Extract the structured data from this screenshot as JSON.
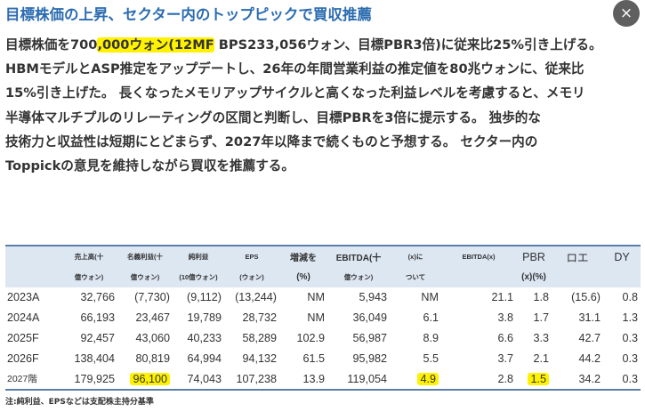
{
  "title": "目標株価の上昇、セクター内のトップピックで買収推薦",
  "close_icon": "×",
  "paragraph": {
    "line1_pre": "目標株価を700",
    "line1_hl": ",000ウォン(12MF",
    "line1_post": " BPS233,056ウォン、目標PBR3倍)に従来比25%引き上げる。",
    "line2": "HBMモデルとASP推定をアップデートし、26年の年間営業利益の推定値を80兆ウォンに、従来比",
    "line3": "15%引き上げた。 長くなったメモリアップサイクルと高くなった利益レベルを考慮すると、メモリ",
    "line4": "半導体マルチプルのリレーティングの区間と判断し、目標PBRを3倍に提示する。 独歩的な",
    "line5": "技術力と収益性は短期にとどまらず、2027年以降まで続くものと予想する。 セクター内の",
    "line6": "Toppickの意見を維持しながら買収を推薦する。"
  },
  "table": {
    "header_row1": [
      "",
      "売上高(十",
      "名義利益(十",
      "純利益",
      "EPS",
      "増減を",
      "EBITDA(十",
      "(x)に",
      "EBITDA(x)",
      "PBR",
      "ロエ",
      "DY"
    ],
    "header_row2": [
      "",
      "億ウォン)",
      "億ウォン)",
      "(10億ウォン)",
      "(ウォン)",
      "(%)",
      "億ウォン)",
      "ついて",
      "",
      "(x)(%)",
      "",
      ""
    ],
    "rows": [
      [
        "2023A",
        "32,766",
        "(7,730)",
        "(9,112)",
        "(13,244)",
        "NM",
        "5,943",
        "NM",
        "21.1",
        "1.8",
        "(15.6)",
        "0.8"
      ],
      [
        "2024A",
        "66,193",
        "23,467",
        "19,789",
        "28,732",
        "NM",
        "36,049",
        "6.1",
        "3.8",
        "1.7",
        "31.1",
        "1.3"
      ],
      [
        "2025F",
        "92,457",
        "43,060",
        "40,233",
        "58,289",
        "102.9",
        "56,987",
        "8.9",
        "6.6",
        "3.3",
        "42.7",
        "0.3"
      ],
      [
        "2026F",
        "138,404",
        "80,819",
        "64,994",
        "94,132",
        "61.5",
        "95,982",
        "5.5",
        "3.7",
        "2.1",
        "44.2",
        "0.3"
      ],
      [
        "2027階",
        "179,925",
        "96,100",
        "74,043",
        "107,238",
        "13.9",
        "119,054",
        "4.9",
        "2.8",
        "1.5",
        "34.2",
        "0.3"
      ]
    ]
  },
  "note": "注:純利益、EPSなどは支配株主持分基準",
  "highlight_color": "#fff200",
  "title_color": "#2b6cb0"
}
